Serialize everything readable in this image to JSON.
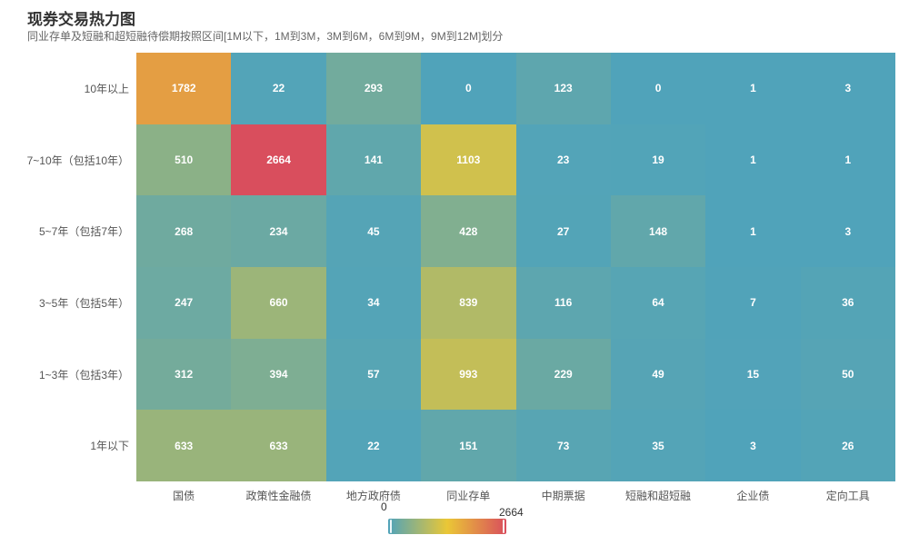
{
  "title": "现券交易热力图",
  "subtitle": "同业存单及短融和超短融待偿期按照区间[1M以下，1M到3M，3M到6M，6M到9M，9M到12M]划分",
  "chart_data": {
    "type": "heatmap",
    "title": "现券交易热力图",
    "x_categories": [
      "国债",
      "政策性金融债",
      "地方政府债",
      "同业存单",
      "中期票据",
      "短融和超短融",
      "企业债",
      "定向工具"
    ],
    "y_categories_top_to_bottom": [
      "10年以上",
      "7~10年（包括10年）",
      "5~7年（包括7年）",
      "3~5年（包括5年）",
      "1~3年（包括3年）",
      "1年以下"
    ],
    "rows": [
      [
        1782,
        22,
        293,
        0,
        123,
        0,
        1,
        3
      ],
      [
        510,
        2664,
        141,
        1103,
        23,
        19,
        1,
        1
      ],
      [
        268,
        234,
        45,
        428,
        27,
        148,
        1,
        3
      ],
      [
        247,
        660,
        34,
        839,
        116,
        64,
        7,
        36
      ],
      [
        312,
        394,
        57,
        993,
        229,
        49,
        15,
        50
      ],
      [
        633,
        633,
        22,
        151,
        73,
        35,
        3,
        26
      ]
    ],
    "visual_map": {
      "min": 0,
      "max": 2664,
      "min_label": "0",
      "max_label": "2664",
      "colors": [
        "#50a3ba",
        "#eac736",
        "#d94e5d"
      ],
      "orient": "horizontal",
      "position": "bottom-center"
    },
    "grid": false,
    "legend": false,
    "cell_label_color": "#ffffff"
  }
}
